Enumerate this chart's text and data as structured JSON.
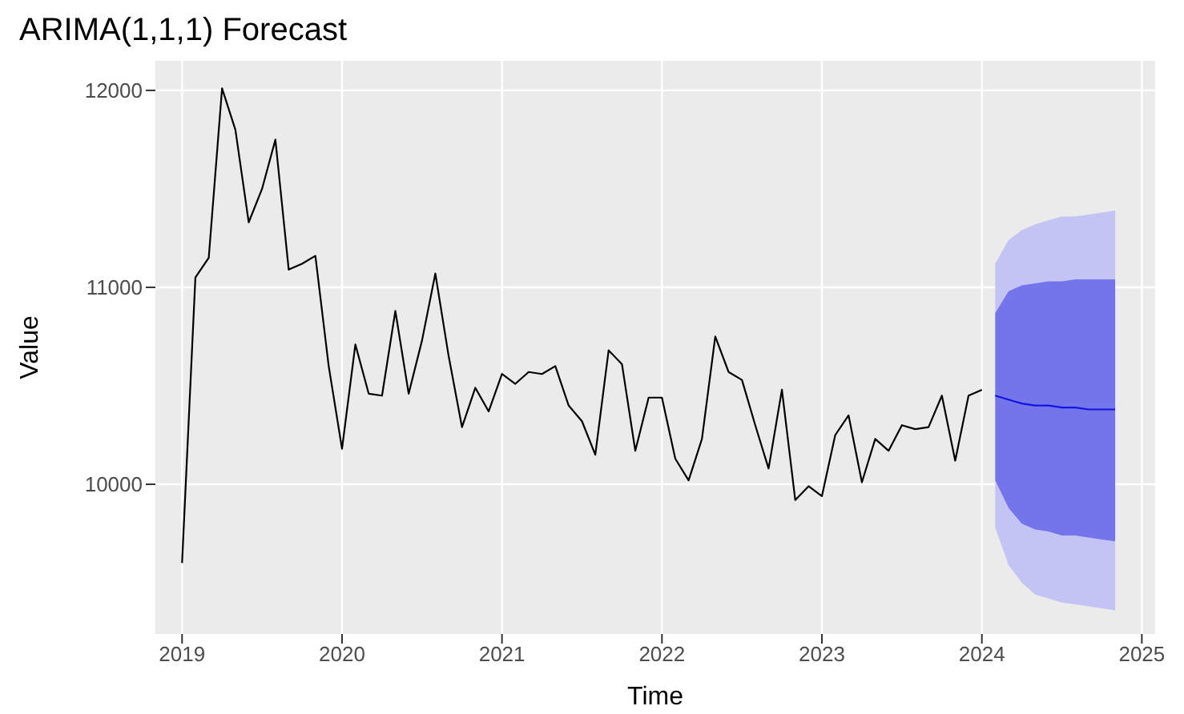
{
  "chart_data": {
    "type": "line",
    "title": "ARIMA(1,1,1) Forecast",
    "xlabel": "Time",
    "ylabel": "Value",
    "xlim": [
      "2018-11",
      "2025-02"
    ],
    "xticks": [
      "2019",
      "2020",
      "2021",
      "2022",
      "2023",
      "2024",
      "2025"
    ],
    "ylim": [
      9240,
      12150
    ],
    "yticks": [
      10000,
      11000,
      12000
    ],
    "grid": true,
    "series": [
      {
        "color": "#000000",
        "x": [
          "2019-01",
          "2019-02",
          "2019-03",
          "2019-04",
          "2019-05",
          "2019-06",
          "2019-07",
          "2019-08",
          "2019-09",
          "2019-10",
          "2019-11",
          "2019-12",
          "2020-01",
          "2020-02",
          "2020-03",
          "2020-04",
          "2020-05",
          "2020-06",
          "2020-07",
          "2020-08",
          "2020-09",
          "2020-10",
          "2020-11",
          "2020-12",
          "2021-01",
          "2021-02",
          "2021-03",
          "2021-04",
          "2021-05",
          "2021-06",
          "2021-07",
          "2021-08",
          "2021-09",
          "2021-10",
          "2021-11",
          "2021-12",
          "2022-01",
          "2022-02",
          "2022-03",
          "2022-04",
          "2022-05",
          "2022-06",
          "2022-07",
          "2022-08",
          "2022-09",
          "2022-10",
          "2022-11",
          "2022-12",
          "2023-01",
          "2023-02",
          "2023-03",
          "2023-04",
          "2023-05",
          "2023-06",
          "2023-07",
          "2023-08",
          "2023-09",
          "2023-10",
          "2023-11",
          "2023-12",
          "2024-01"
        ],
        "values": [
          9600,
          11050,
          11150,
          12010,
          11800,
          11330,
          11500,
          11750,
          11090,
          11120,
          11160,
          10600,
          10180,
          10710,
          10460,
          10450,
          10880,
          10460,
          10730,
          11070,
          10650,
          10290,
          10490,
          10370,
          10560,
          10510,
          10570,
          10560,
          10600,
          10400,
          10320,
          10150,
          10680,
          10610,
          10170,
          10440,
          10440,
          10130,
          10020,
          10230,
          10750,
          10570,
          10530,
          10300,
          10080,
          10480,
          9920,
          9990,
          9940,
          10250,
          10350,
          10010,
          10230,
          10170,
          10300,
          10280,
          10290,
          10450,
          10120,
          10450,
          10480
        ]
      },
      {
        "color": "#c4c4f4",
        "x": [
          "2024-02",
          "2024-03",
          "2024-04",
          "2024-05",
          "2024-06",
          "2024-07",
          "2024-08",
          "2024-09",
          "2024-10",
          "2024-11"
        ],
        "values": [
          null,
          null,
          null,
          null,
          null,
          null,
          null,
          null,
          null,
          null
        ],
        "lower": [
          9780,
          9590,
          9500,
          9440,
          9420,
          9400,
          9390,
          9380,
          9370,
          9360
        ],
        "upper": [
          11120,
          11240,
          11290,
          11320,
          11340,
          11360,
          11360,
          11370,
          11380,
          11390
        ]
      },
      {
        "color": "#1414e0",
        "x": [
          "2024-02",
          "2024-03",
          "2024-04",
          "2024-05",
          "2024-06",
          "2024-07",
          "2024-08",
          "2024-09",
          "2024-10",
          "2024-11"
        ],
        "values": [
          10450,
          10430,
          10410,
          10400,
          10400,
          10390,
          10390,
          10380,
          10380,
          10380
        ],
        "lower": [
          10020,
          9880,
          9800,
          9770,
          9760,
          9740,
          9740,
          9730,
          9720,
          9710
        ],
        "upper": [
          10870,
          10980,
          11010,
          11020,
          11030,
          11030,
          11040,
          11040,
          11040,
          11040
        ]
      }
    ]
  }
}
